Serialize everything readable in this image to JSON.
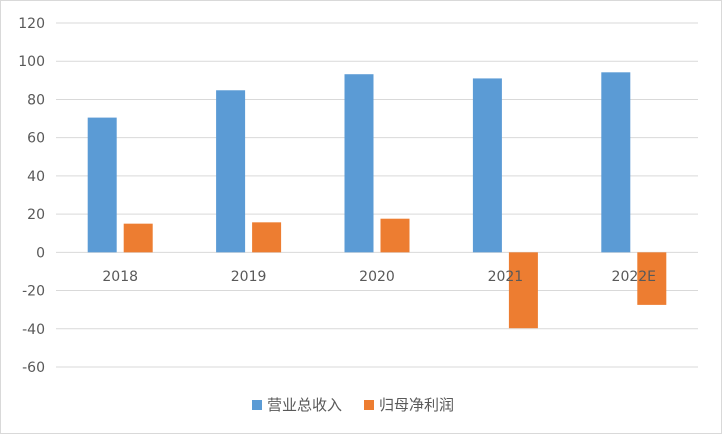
{
  "chart_data": {
    "type": "bar",
    "title": "",
    "xlabel": "",
    "ylabel": "",
    "categories": [
      "2018",
      "2019",
      "2020",
      "2021",
      "2022E"
    ],
    "series": [
      {
        "name": "营业总收入",
        "values": [
          70.5,
          84.8,
          93.2,
          91.0,
          94.2
        ],
        "color": "#5b9bd5"
      },
      {
        "name": "归母净利润",
        "values": [
          15.0,
          15.7,
          17.6,
          -39.7,
          -27.5
        ],
        "color": "#ed7d31"
      }
    ],
    "y_ticks": [
      "120",
      "100",
      "80",
      "60",
      "40",
      "20",
      "0",
      "-20",
      "-40",
      "-60"
    ],
    "ylim": [
      -60,
      120
    ],
    "grid": true,
    "legend_position": "bottom"
  }
}
